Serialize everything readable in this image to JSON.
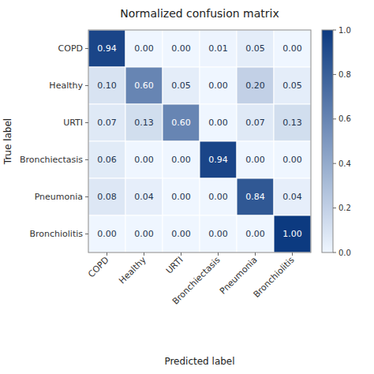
{
  "chart_data": {
    "type": "heatmap",
    "title": "Normalized confusion matrix",
    "x_label": "Predicted label",
    "y_label": "True label",
    "categories": [
      "COPD",
      "Healthy",
      "URTI",
      "Bronchiectasis",
      "Pneumonia",
      "Bronchiolitis"
    ],
    "y_categories": [
      "COPD",
      "Healthy",
      "URTI",
      "Bronchiectasis",
      "Pneumonia",
      "Bronchiolitis"
    ],
    "values": [
      [
        0.94,
        0.0,
        0.0,
        0.01,
        0.05,
        0.0
      ],
      [
        0.1,
        0.6,
        0.05,
        0.0,
        0.2,
        0.05
      ],
      [
        0.07,
        0.13,
        0.6,
        0.0,
        0.07,
        0.13
      ],
      [
        0.06,
        0.0,
        0.0,
        0.94,
        0.0,
        0.0
      ],
      [
        0.08,
        0.04,
        0.0,
        0.0,
        0.84,
        0.04
      ],
      [
        0.0,
        0.0,
        0.0,
        0.0,
        0.0,
        1.0
      ]
    ],
    "value_labels": [
      [
        "0.94",
        "0.00",
        "0.00",
        "0.01",
        "0.05",
        "0.00"
      ],
      [
        "0.10",
        "0.60",
        "0.05",
        "0.00",
        "0.20",
        "0.05"
      ],
      [
        "0.07",
        "0.13",
        "0.60",
        "0.00",
        "0.07",
        "0.13"
      ],
      [
        "0.06",
        "0.00",
        "0.00",
        "0.94",
        "0.00",
        "0.00"
      ],
      [
        "0.08",
        "0.04",
        "0.00",
        "0.00",
        "0.84",
        "0.04"
      ],
      [
        "0.00",
        "0.00",
        "0.00",
        "0.00",
        "0.00",
        "1.00"
      ]
    ],
    "data_labels": true,
    "grid": false,
    "color_range": [
      0,
      1
    ],
    "color_ticks": [
      {
        "value": 0,
        "label": "0.0"
      },
      {
        "value": 0.2,
        "label": "0.2"
      },
      {
        "value": 0.4,
        "label": "0.4"
      },
      {
        "value": 0.6,
        "label": "0.6"
      },
      {
        "value": 0.8,
        "label": "0.8"
      },
      {
        "value": 1,
        "label": "1.0"
      }
    ]
  }
}
